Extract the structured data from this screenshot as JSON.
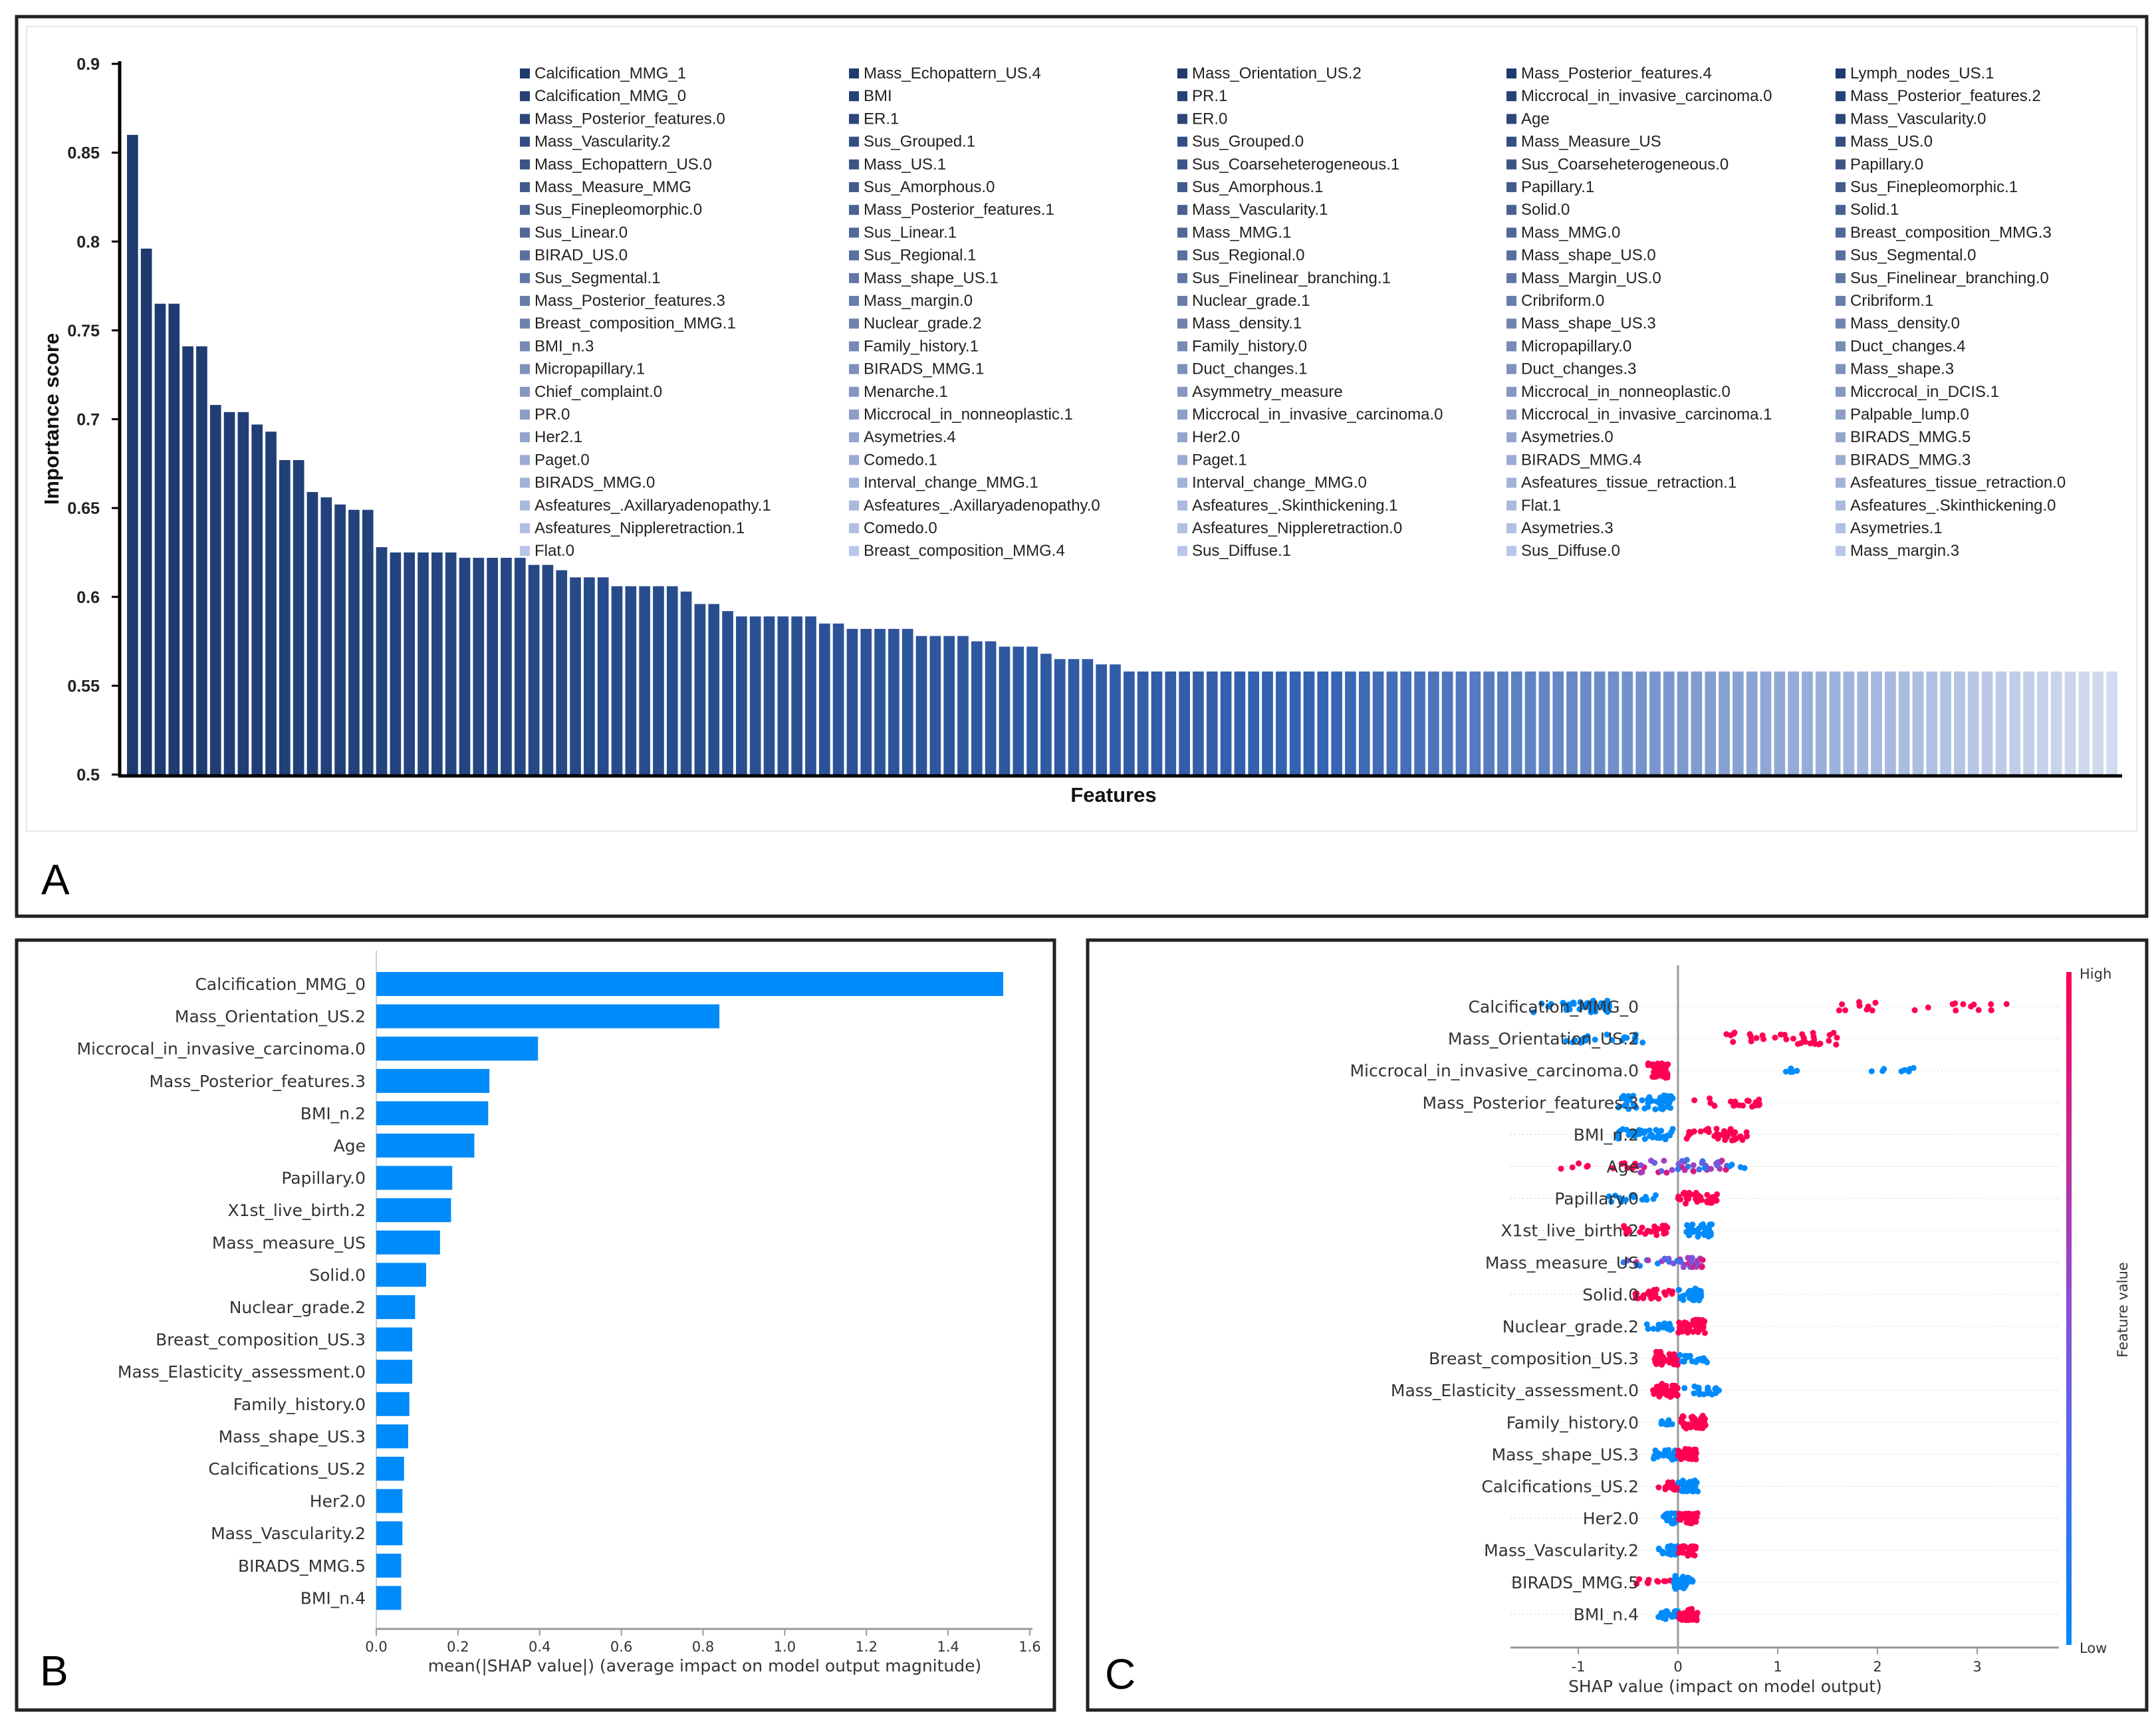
{
  "panels": {
    "a": "A",
    "b": "B",
    "c": "C"
  },
  "chart_data": [
    {
      "id": "A",
      "type": "bar",
      "title": "",
      "xlabel": "Features",
      "ylabel": "Importance score",
      "ylim": [
        0.5,
        0.9
      ],
      "yticks": [
        "0.5",
        "0.55",
        "0.6",
        "0.65",
        "0.7",
        "0.75",
        "0.8",
        "0.85",
        "0.9"
      ],
      "color_start": "#1e3a6f",
      "color_mid": "#3563b3",
      "color_end": "#d3dbf0",
      "values": [
        0.86,
        0.796,
        0.765,
        0.765,
        0.741,
        0.741,
        0.708,
        0.704,
        0.704,
        0.697,
        0.693,
        0.677,
        0.677,
        0.659,
        0.656,
        0.652,
        0.649,
        0.649,
        0.628,
        0.625,
        0.625,
        0.625,
        0.625,
        0.625,
        0.622,
        0.622,
        0.622,
        0.622,
        0.622,
        0.618,
        0.618,
        0.615,
        0.611,
        0.611,
        0.611,
        0.606,
        0.606,
        0.606,
        0.606,
        0.606,
        0.603,
        0.596,
        0.596,
        0.592,
        0.589,
        0.589,
        0.589,
        0.589,
        0.589,
        0.589,
        0.585,
        0.585,
        0.582,
        0.582,
        0.582,
        0.582,
        0.582,
        0.578,
        0.578,
        0.578,
        0.578,
        0.575,
        0.575,
        0.572,
        0.572,
        0.572,
        0.568,
        0.565,
        0.565,
        0.565,
        0.562,
        0.562,
        0.558,
        0.558,
        0.558,
        0.558,
        0.558,
        0.558,
        0.558,
        0.558,
        0.558,
        0.558,
        0.558,
        0.558,
        0.558,
        0.558,
        0.558,
        0.558,
        0.558,
        0.558,
        0.558,
        0.558,
        0.558,
        0.558,
        0.558,
        0.558,
        0.558,
        0.558,
        0.558,
        0.558,
        0.558,
        0.558,
        0.558,
        0.558,
        0.558,
        0.558,
        0.558,
        0.558,
        0.558,
        0.558,
        0.558,
        0.558,
        0.558,
        0.558,
        0.558,
        0.558,
        0.558,
        0.558,
        0.558,
        0.558,
        0.558,
        0.558,
        0.558,
        0.558,
        0.558,
        0.558,
        0.558,
        0.558,
        0.558,
        0.558,
        0.558,
        0.558,
        0.558,
        0.558,
        0.558,
        0.558,
        0.558,
        0.558,
        0.558,
        0.558,
        0.558,
        0.558,
        0.558,
        0.558
      ],
      "legend_placement": "top-right",
      "legend_columns": [
        [
          "Calcification_MMG_1",
          "Calcification_MMG_0",
          "Mass_Posterior_features.0",
          "Mass_Vascularity.2",
          "Mass_Echopattern_US.0",
          "Mass_Measure_MMG",
          "Sus_Finepleomorphic.0",
          "Sus_Linear.0",
          "BIRAD_US.0",
          "Sus_Segmental.1",
          "Mass_Posterior_features.3",
          "Breast_composition_MMG.1",
          "BMI_n.3",
          "Micropapillary.1",
          "Chief_complaint.0",
          "PR.0",
          "Her2.1",
          "Paget.0",
          "BIRADS_MMG.0",
          "Asfeatures_.Axillaryadenopathy.1",
          "Asfeatures_Nippleretraction.1",
          "Flat.0"
        ],
        [
          "Mass_Echopattern_US.4",
          "BMI",
          "ER.1",
          "Sus_Grouped.1",
          "Mass_US.1",
          "Sus_Amorphous.0",
          "Mass_Posterior_features.1",
          "Sus_Linear.1",
          "Sus_Regional.1",
          "Mass_shape_US.1",
          "Mass_margin.0",
          "Nuclear_grade.2",
          "Family_history.1",
          "BIRADS_MMG.1",
          "Menarche.1",
          "Miccrocal_in_nonneoplastic.1",
          "Asymetries.4",
          "Comedo.1",
          "Interval_change_MMG.1",
          "Asfeatures_.Axillaryadenopathy.0",
          "Comedo.0",
          "Breast_composition_MMG.4"
        ],
        [
          "Mass_Orientation_US.2",
          "PR.1",
          "ER.0",
          "Sus_Grouped.0",
          "Sus_Coarseheterogeneous.1",
          "Sus_Amorphous.1",
          "Mass_Vascularity.1",
          "Mass_MMG.1",
          "Sus_Regional.0",
          "Sus_Finelinear_branching.1",
          "Nuclear_grade.1",
          "Mass_density.1",
          "Family_history.0",
          "Duct_changes.1",
          "Asymmetry_measure",
          "Miccrocal_in_invasive_carcinoma.0",
          "Her2.0",
          "Paget.1",
          "Interval_change_MMG.0",
          "Asfeatures_.Skinthickening.1",
          "Asfeatures_Nippleretraction.0",
          "Sus_Diffuse.1"
        ],
        [
          "Mass_Posterior_features.4",
          "Miccrocal_in_invasive_carcinoma.0",
          "Age",
          "Mass_Measure_US",
          "Sus_Coarseheterogeneous.0",
          "Papillary.1",
          "Solid.0",
          "Mass_MMG.0",
          "Mass_shape_US.0",
          "Mass_Margin_US.0",
          "Cribriform.0",
          "Mass_shape_US.3",
          "Micropapillary.0",
          "Duct_changes.3",
          "Miccrocal_in_nonneoplastic.0",
          "Miccrocal_in_invasive_carcinoma.1",
          "Asymetries.0",
          "BIRADS_MMG.4",
          "Asfeatures_tissue_retraction.1",
          "Flat.1",
          "Asymetries.3",
          "Sus_Diffuse.0"
        ],
        [
          "Lymph_nodes_US.1",
          "Mass_Posterior_features.2",
          "Mass_Vascularity.0",
          "Mass_US.0",
          "Papillary.0",
          "Sus_Finepleomorphic.1",
          "Solid.1",
          "Breast_composition_MMG.3",
          "Sus_Segmental.0",
          "Sus_Finelinear_branching.0",
          "Cribriform.1",
          "Mass_density.0",
          "Duct_changes.4",
          "Mass_shape.3",
          "Miccrocal_in_DCIS.1",
          "Palpable_lump.0",
          "BIRADS_MMG.5",
          "BIRADS_MMG.3",
          "Asfeatures_tissue_retraction.0",
          "Asfeatures_.Skinthickening.0",
          "Asymetries.1",
          "Mass_margin.3"
        ]
      ]
    },
    {
      "id": "B",
      "type": "bar",
      "orientation": "horizontal",
      "xlabel": "mean(|SHAP value|) (average impact on model output magnitude)",
      "xlim": [
        0,
        1.6
      ],
      "xticks": [
        "0.0",
        "0.2",
        "0.4",
        "0.6",
        "0.8",
        "1.0",
        "1.2",
        "1.4",
        "1.6"
      ],
      "color": "#008bfb",
      "categories": [
        "Calcification_MMG_0",
        "Mass_Orientation_US.2",
        "Miccrocal_in_invasive_carcinoma.0",
        "Mass_Posterior_features.3",
        "BMI_n.2",
        "Age",
        "Papillary.0",
        "X1st_live_birth.2",
        "Mass_measure_US",
        "Solid.0",
        "Nuclear_grade.2",
        "Breast_composition_US.3",
        "Mass_Elasticity_assessment.0",
        "Family_history.0",
        "Mass_shape_US.3",
        "Calcifications_US.2",
        "Her2.0",
        "Mass_Vascularity.2",
        "BIRADS_MMG.5",
        "BMI_n.4"
      ],
      "values": [
        1.535,
        0.84,
        0.396,
        0.277,
        0.274,
        0.24,
        0.186,
        0.183,
        0.156,
        0.122,
        0.095,
        0.088,
        0.088,
        0.081,
        0.078,
        0.068,
        0.064,
        0.064,
        0.061,
        0.061
      ]
    },
    {
      "id": "C",
      "type": "scatter",
      "subtype": "beeswarm",
      "xlabel": "SHAP value (impact on model output)",
      "xlim": [
        -1.6,
        3.6
      ],
      "xticks": [
        -1,
        0,
        1,
        2,
        3
      ],
      "colorbar": {
        "label": "Feature value",
        "high": "High",
        "low": "Low",
        "high_color": "#ff0052",
        "low_color": "#008bfb"
      },
      "features": [
        {
          "name": "Calcification_MMG_0",
          "clusters": [
            [
              -1.45,
              -0.65,
              40,
              0
            ],
            [
              1.6,
              3.3,
              22,
              1
            ]
          ]
        },
        {
          "name": "Mass_Orientation_US.2",
          "clusters": [
            [
              -1.2,
              -0.35,
              20,
              0
            ],
            [
              0.4,
              1.6,
              35,
              1
            ]
          ]
        },
        {
          "name": "Miccrocal_in_invasive_carcinoma.0",
          "clusters": [
            [
              -0.3,
              -0.1,
              50,
              1
            ],
            [
              1.0,
              1.2,
              5,
              0
            ],
            [
              1.9,
              2.4,
              8,
              0
            ]
          ]
        },
        {
          "name": "Mass_Posterior_features.3",
          "clusters": [
            [
              -0.6,
              -0.05,
              45,
              0
            ],
            [
              0.1,
              0.9,
              20,
              1
            ]
          ]
        },
        {
          "name": "BMI_n.2",
          "clusters": [
            [
              -0.7,
              -0.05,
              35,
              0
            ],
            [
              0.05,
              0.7,
              35,
              1
            ]
          ]
        },
        {
          "name": "Age",
          "clusters": [
            [
              -1.2,
              -0.4,
              12,
              1
            ],
            [
              -0.4,
              0.5,
              40,
              0.5
            ],
            [
              0.5,
              0.7,
              4,
              0
            ]
          ]
        },
        {
          "name": "Papillary.0",
          "clusters": [
            [
              -0.7,
              -0.2,
              15,
              0
            ],
            [
              0.0,
              0.4,
              35,
              1
            ]
          ]
        },
        {
          "name": "X1st_live_birth.2",
          "clusters": [
            [
              -0.55,
              -0.1,
              25,
              1
            ],
            [
              0.05,
              0.35,
              40,
              0
            ]
          ]
        },
        {
          "name": "Mass_measure_US",
          "clusters": [
            [
              -0.6,
              0.0,
              15,
              0.3
            ],
            [
              0.0,
              0.25,
              25,
              0.6
            ]
          ]
        },
        {
          "name": "Solid.0",
          "clusters": [
            [
              -0.5,
              -0.05,
              25,
              1
            ],
            [
              0.0,
              0.25,
              35,
              0
            ]
          ]
        },
        {
          "name": "Nuclear_grade.2",
          "clusters": [
            [
              -0.4,
              -0.05,
              15,
              0
            ],
            [
              0.0,
              0.27,
              40,
              1
            ]
          ]
        },
        {
          "name": "Breast_composition_US.3",
          "clusters": [
            [
              -0.25,
              0.0,
              40,
              1
            ],
            [
              0.0,
              0.3,
              20,
              0
            ]
          ]
        },
        {
          "name": "Mass_Elasticity_assessment.0",
          "clusters": [
            [
              -0.25,
              0.0,
              40,
              1
            ],
            [
              0.0,
              0.45,
              20,
              0
            ]
          ]
        },
        {
          "name": "Family_history.0",
          "clusters": [
            [
              -0.2,
              -0.05,
              10,
              0
            ],
            [
              0.0,
              0.28,
              40,
              1
            ]
          ]
        },
        {
          "name": "Mass_shape_US.3",
          "clusters": [
            [
              -0.25,
              0.0,
              30,
              0
            ],
            [
              0.0,
              0.2,
              30,
              1
            ]
          ]
        },
        {
          "name": "Calcifications_US.2",
          "clusters": [
            [
              -0.2,
              0.0,
              20,
              1
            ],
            [
              0.0,
              0.2,
              35,
              0
            ]
          ]
        },
        {
          "name": "Her2.0",
          "clusters": [
            [
              -0.15,
              0.0,
              30,
              0
            ],
            [
              0.0,
              0.2,
              30,
              1
            ]
          ]
        },
        {
          "name": "Mass_Vascularity.2",
          "clusters": [
            [
              -0.2,
              0.0,
              25,
              0
            ],
            [
              0.0,
              0.18,
              30,
              1
            ]
          ]
        },
        {
          "name": "BIRADS_MMG.5",
          "clusters": [
            [
              -0.45,
              -0.05,
              10,
              1
            ],
            [
              -0.05,
              0.15,
              40,
              0
            ]
          ]
        },
        {
          "name": "BMI_n.4",
          "clusters": [
            [
              -0.2,
              0.0,
              25,
              0
            ],
            [
              0.0,
              0.2,
              35,
              1
            ]
          ]
        }
      ]
    }
  ]
}
